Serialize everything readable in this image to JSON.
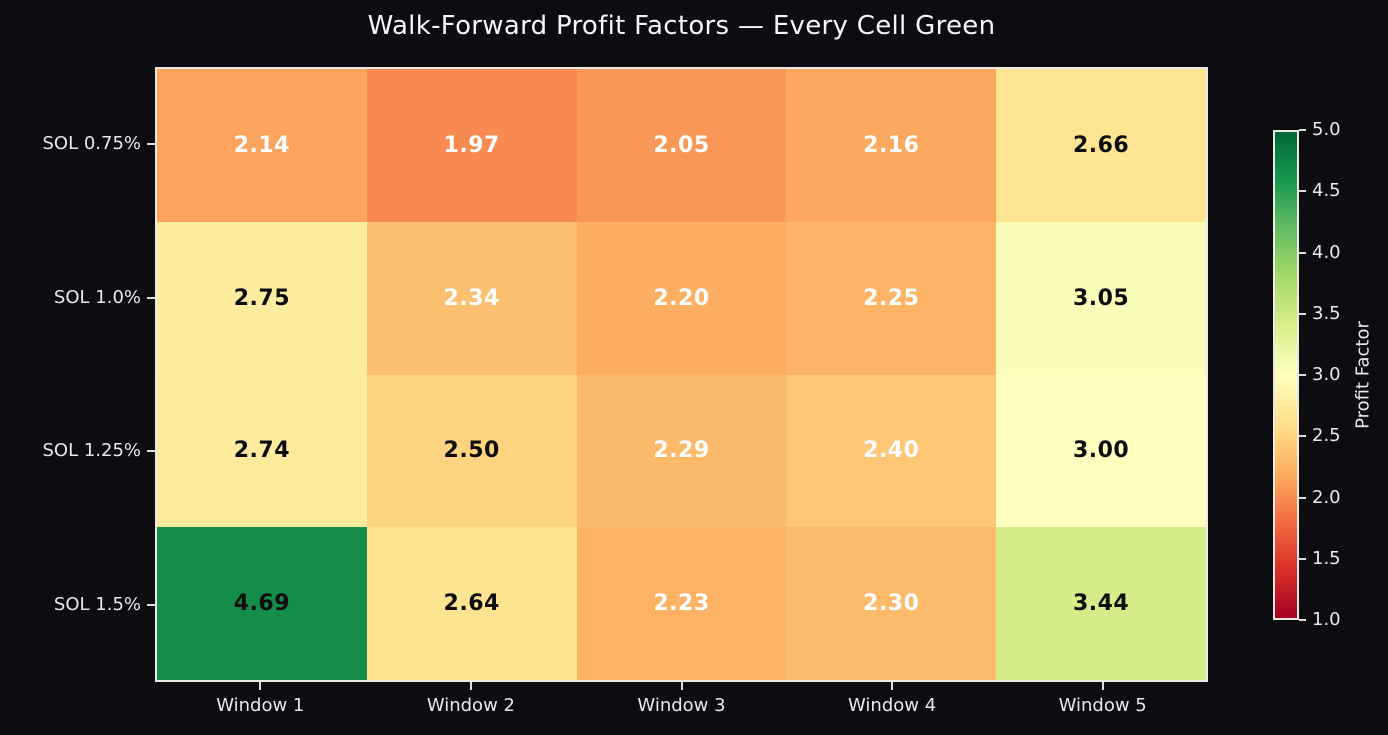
{
  "page": {
    "background": "#0c0c11",
    "title": "Walk-Forward Profit Factors — Every Cell Green"
  },
  "chart_data": {
    "type": "heatmap",
    "title": "Walk-Forward Profit Factors — Every Cell Green",
    "rows": [
      "SOL 0.75%",
      "SOL 1.0%",
      "SOL 1.25%",
      "SOL 1.5%"
    ],
    "columns": [
      "Window 1",
      "Window 2",
      "Window 3",
      "Window 4",
      "Window 5"
    ],
    "values": [
      [
        2.14,
        1.97,
        2.05,
        2.16,
        2.66
      ],
      [
        2.75,
        2.34,
        2.2,
        2.25,
        3.05
      ],
      [
        2.74,
        2.5,
        2.29,
        2.4,
        3.0
      ],
      [
        4.69,
        2.64,
        2.23,
        2.3,
        3.44
      ]
    ],
    "value_format_decimals": 2,
    "vmin": 1.0,
    "vmax": 5.0,
    "colormap": "RdYlGn",
    "colormap_stops": [
      "#a50026",
      "#d73027",
      "#f46d43",
      "#fdae61",
      "#fee08b",
      "#ffffbf",
      "#d9ef8b",
      "#a6d96a",
      "#66bd63",
      "#1a9850",
      "#006837"
    ],
    "annotation": {
      "light_text": "#ffffff",
      "dark_text": "#0d0d0d",
      "dark_text_threshold": 2.5
    },
    "colorbar": {
      "label": "Profit Factor",
      "ticks": [
        "5.0",
        "4.5",
        "4.0",
        "3.5",
        "3.0",
        "2.5",
        "2.0",
        "1.5",
        "1.0"
      ]
    },
    "grid": false,
    "legend_position": "right-colorbar"
  }
}
